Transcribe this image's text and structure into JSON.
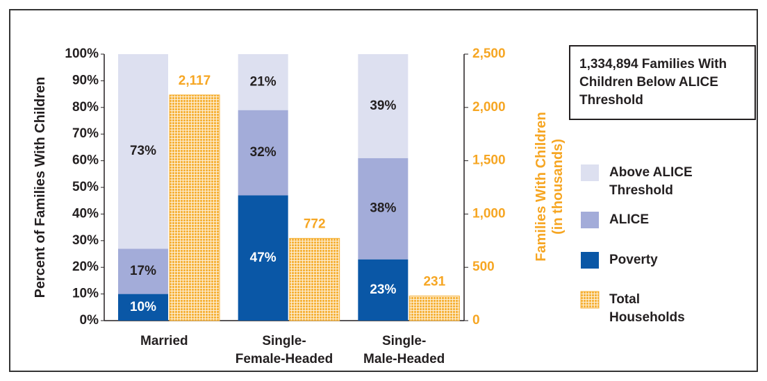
{
  "chart_data": {
    "type": "bar",
    "stacked": true,
    "title": "1,334,894 Families With Children Below ALICE Threshold",
    "ylabel": "Percent of Families With Children",
    "y2label": "Families With Children\n(in thousands)",
    "categories": [
      "Married",
      "Single-\nFemale-Headed",
      "Single-\nMale-Headed"
    ],
    "series": [
      {
        "name": "Above ALICE Threshold",
        "color": "#dde0f0",
        "values": [
          73,
          21,
          39
        ],
        "value_labels": [
          "73%",
          "21%",
          "39%"
        ]
      },
      {
        "name": "ALICE",
        "color": "#a3acd9",
        "values": [
          17,
          32,
          38
        ],
        "value_labels": [
          "17%",
          "32%",
          "38%"
        ]
      },
      {
        "name": "Poverty",
        "color": "#0a57a6",
        "values": [
          10,
          47,
          23
        ],
        "value_labels": [
          "10%",
          "47%",
          "23%"
        ]
      },
      {
        "name": "Total Households",
        "color": "#f6b23a",
        "axis": "y2",
        "values": [
          2117,
          772,
          231
        ],
        "value_labels": [
          "2,117",
          "772",
          "231"
        ]
      }
    ],
    "ylim": [
      0,
      100
    ],
    "yticks": [
      {
        "value": 0,
        "label": "0%"
      },
      {
        "value": 10,
        "label": "10%"
      },
      {
        "value": 20,
        "label": "20%"
      },
      {
        "value": 30,
        "label": "30%"
      },
      {
        "value": 40,
        "label": "40%"
      },
      {
        "value": 50,
        "label": "50%"
      },
      {
        "value": 60,
        "label": "60%"
      },
      {
        "value": 70,
        "label": "70%"
      },
      {
        "value": 80,
        "label": "80%"
      },
      {
        "value": 90,
        "label": "90%"
      },
      {
        "value": 100,
        "label": "100%"
      }
    ],
    "y2lim": [
      0,
      2500
    ],
    "y2ticks": [
      0,
      500,
      {
        "value": 1000,
        "label": "1,000"
      },
      {
        "value": 1500,
        "label": "1,500"
      },
      {
        "value": 2000,
        "label": "2,000"
      },
      {
        "value": 2500,
        "label": "2,500"
      }
    ],
    "legend": "right"
  }
}
